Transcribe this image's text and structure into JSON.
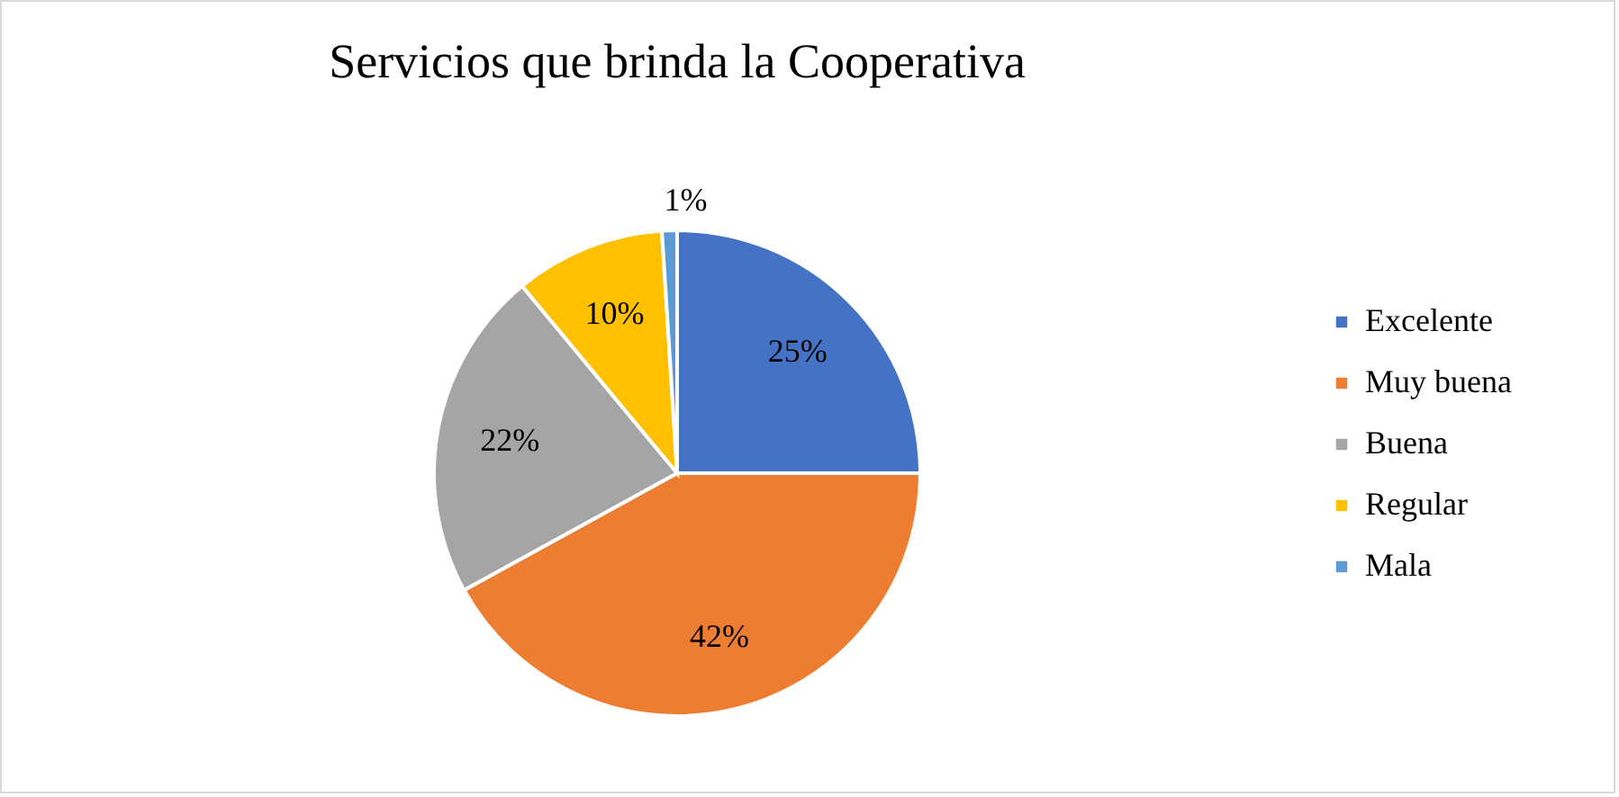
{
  "chart_data": {
    "type": "pie",
    "title": "Servicios que brinda la Cooperativa",
    "categories": [
      "Excelente",
      "Muy buena",
      "Buena",
      "Regular",
      "Mala"
    ],
    "values": [
      25,
      42,
      22,
      10,
      1
    ],
    "colors": [
      "#4472c4",
      "#ed7d31",
      "#a5a5a5",
      "#ffc000",
      "#5b9bd5"
    ],
    "value_labels": [
      "25%",
      "42%",
      "22%",
      "10%",
      "1%"
    ],
    "legend": "right"
  }
}
